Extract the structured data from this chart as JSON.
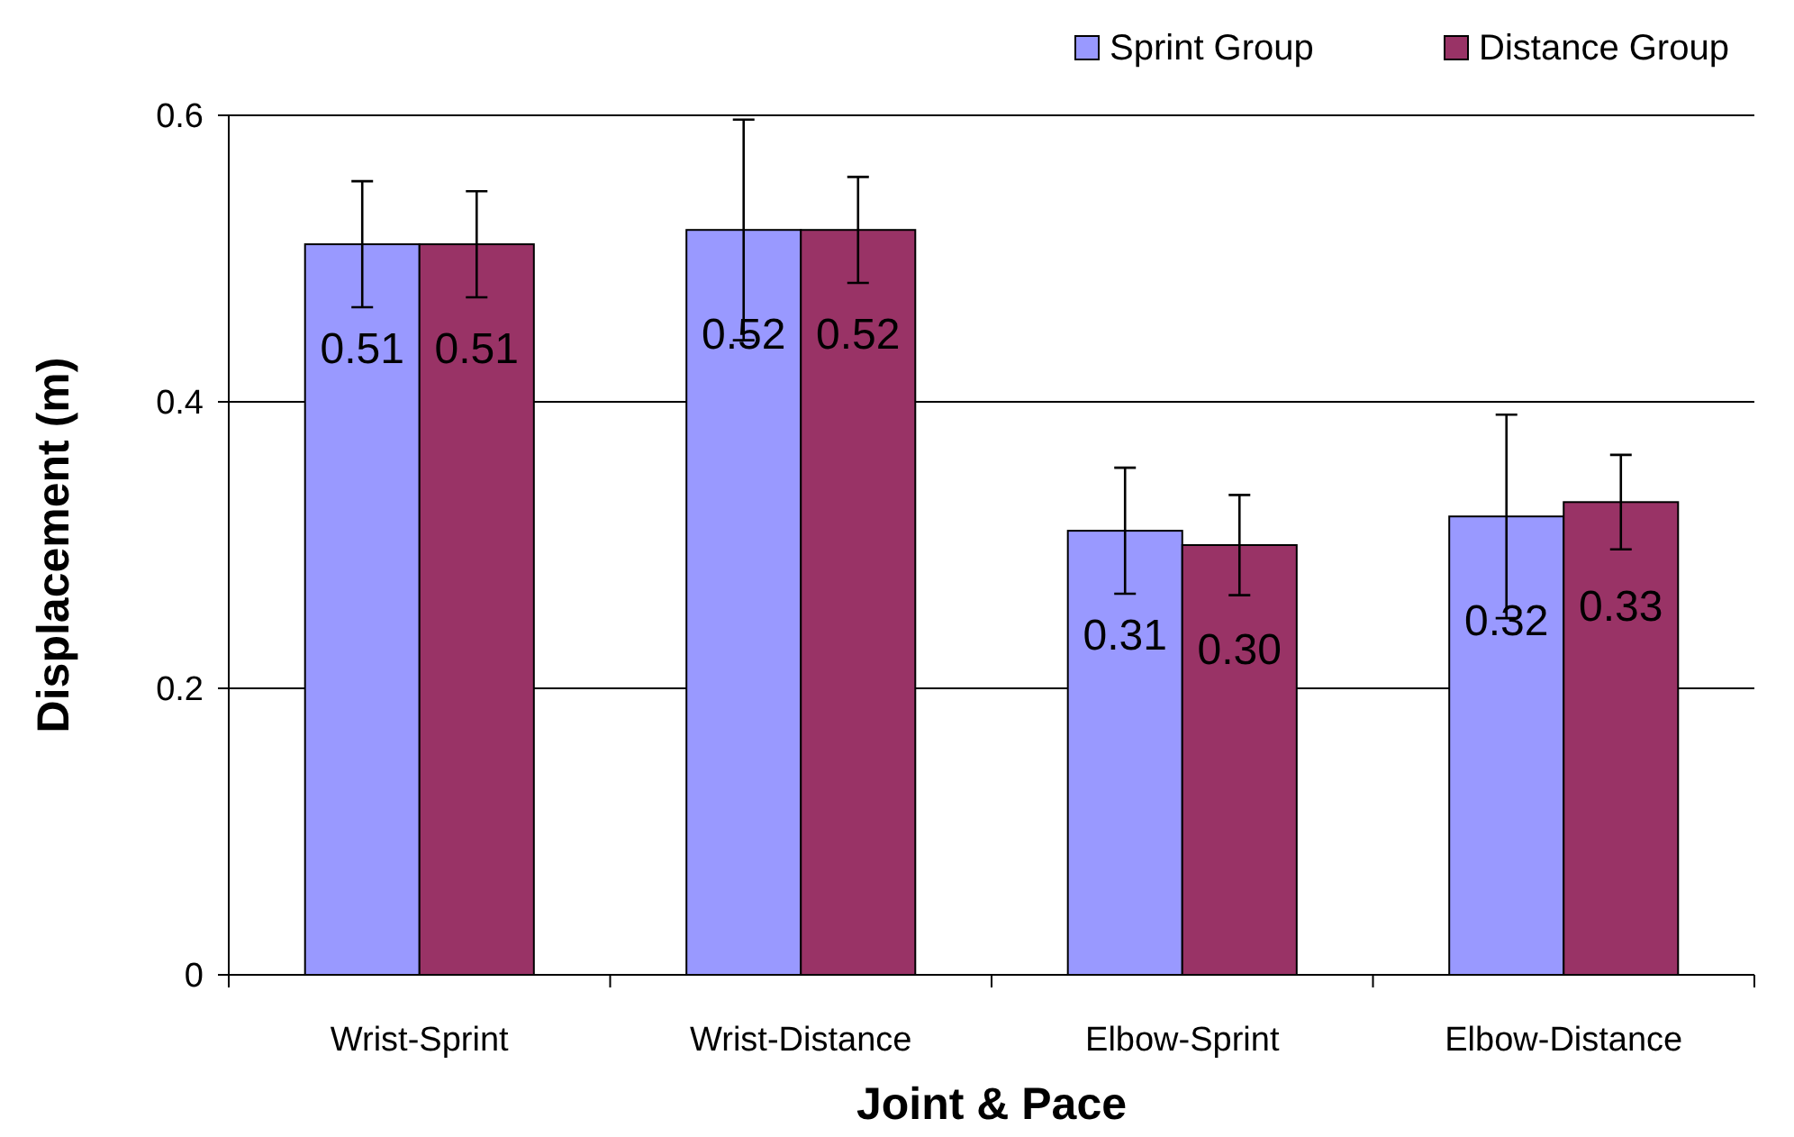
{
  "chart_data": {
    "type": "bar",
    "xlabel": "Joint & Pace",
    "ylabel": "Displacement (m)",
    "categories": [
      "Wrist-Sprint",
      "Wrist-Distance",
      "Elbow-Sprint",
      "Elbow-Distance"
    ],
    "series": [
      {
        "name": "Sprint Group",
        "color": "#9999ff",
        "values": [
          0.51,
          0.52,
          0.31,
          0.32
        ],
        "value_labels": [
          "0.51",
          "0.52",
          "0.31",
          "0.32"
        ],
        "errors": [
          0.044,
          0.077,
          0.044,
          0.071
        ]
      },
      {
        "name": "Distance Group",
        "color": "#993366",
        "values": [
          0.51,
          0.52,
          0.3,
          0.33
        ],
        "value_labels": [
          "0.51",
          "0.52",
          "0.30",
          "0.33"
        ],
        "errors": [
          0.037,
          0.037,
          0.035,
          0.033
        ]
      }
    ],
    "ylim": [
      0,
      0.6
    ],
    "yticks": [
      0,
      0.2,
      0.4,
      0.6
    ],
    "grid": "y",
    "legend": "top right"
  }
}
